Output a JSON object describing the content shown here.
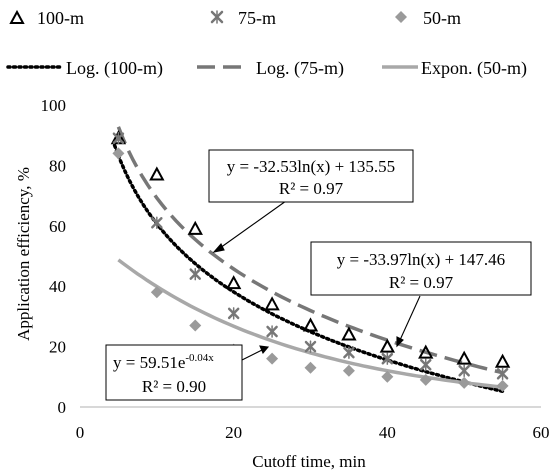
{
  "chart_data": {
    "type": "scatter",
    "title": "",
    "xlabel": "Cutoff time, min",
    "ylabel": "Application efficiency, %",
    "xlim": [
      0,
      60
    ],
    "ylim": [
      0,
      100
    ],
    "x_ticks": [
      0,
      20,
      40,
      60
    ],
    "y_ticks": [
      0,
      20,
      40,
      60,
      80,
      100
    ],
    "x_tick_labels": [
      "0",
      "20",
      "40",
      "60"
    ],
    "y_tick_labels": [
      "0",
      "20",
      "40",
      "60",
      "80",
      "100"
    ],
    "grid": false,
    "legend_placement": "top",
    "series": [
      {
        "name": "100-m",
        "marker": "triangle-open",
        "color": "#000000",
        "x": [
          5,
          10,
          15,
          20,
          25,
          30,
          35,
          40,
          45,
          50,
          55
        ],
        "y": [
          89,
          77,
          59,
          41,
          34,
          27,
          24,
          20,
          18,
          16,
          15
        ]
      },
      {
        "name": "75-m",
        "marker": "x",
        "color": "#777777",
        "x": [
          5,
          10,
          15,
          20,
          25,
          30,
          35,
          40,
          45,
          50,
          55
        ],
        "y": [
          89,
          61,
          44,
          31,
          25,
          20,
          18,
          16,
          14,
          12,
          11
        ]
      },
      {
        "name": "50-m",
        "marker": "diamond",
        "color": "#9a9a9a",
        "x": [
          5,
          10,
          15,
          20,
          25,
          30,
          35,
          40,
          45,
          50,
          55
        ],
        "y": [
          84,
          38,
          27,
          19,
          16,
          13,
          12,
          10,
          9,
          8,
          7
        ]
      }
    ],
    "trendlines": [
      {
        "name": "Log. (100-m)",
        "kind": "log",
        "a": -32.53,
        "b": 135.55,
        "style": "dotted",
        "color": "#000000",
        "x_range": [
          4.5,
          55
        ],
        "equation": "y = -32.53ln(x) + 135.55",
        "r2": "R² = 0.97"
      },
      {
        "name": "Log. (75-m)",
        "kind": "log",
        "a": -33.97,
        "b": 147.46,
        "style": "dashed",
        "color": "#777777",
        "x_range": [
          5,
          55
        ],
        "equation": "y = -33.97ln(x) + 147.46",
        "r2": "R² = 0.97"
      },
      {
        "name": "Expon. (50-m)",
        "kind": "exp",
        "a": 59.51,
        "b": -0.04,
        "style": "solid",
        "color": "#a8a8a8",
        "x_range": [
          5,
          55
        ],
        "equation_base": "y = 59.51e",
        "equation_exp": "-0.04x",
        "r2": "R² = 0.90"
      }
    ]
  }
}
